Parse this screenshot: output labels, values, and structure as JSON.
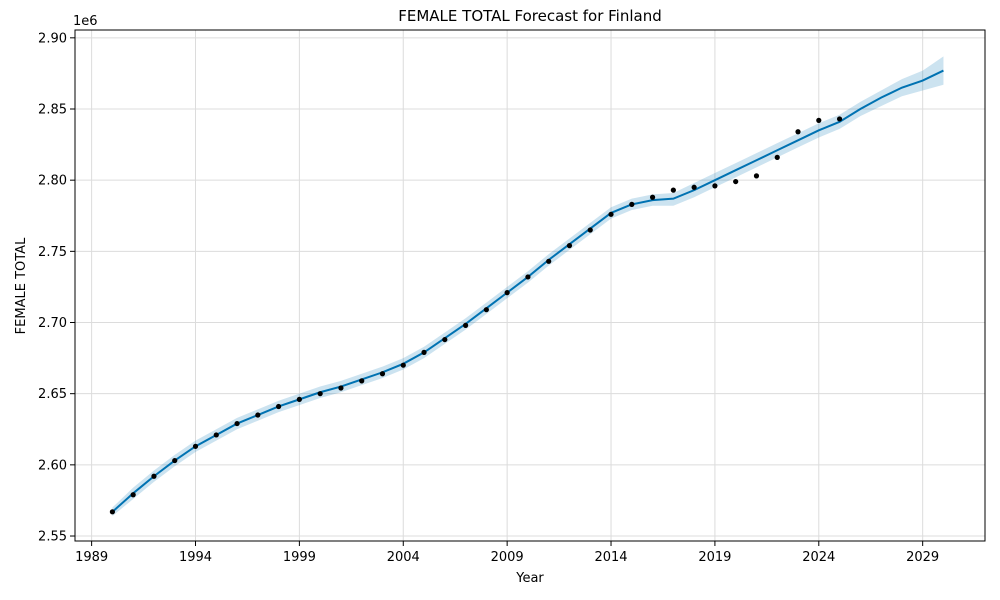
{
  "chart_data": {
    "type": "line",
    "title": "FEMALE TOTAL Forecast for Finland",
    "xlabel": "Year",
    "ylabel": "FEMALE TOTAL",
    "y_multiplier_label": "1e6",
    "xlim": [
      1988.2,
      2032.0
    ],
    "ylim": [
      2.5465,
      2.9055
    ],
    "x_ticks": [
      1989,
      1994,
      1999,
      2004,
      2009,
      2014,
      2019,
      2024,
      2029
    ],
    "y_ticks": [
      2.55,
      2.6,
      2.65,
      2.7,
      2.75,
      2.8,
      2.85,
      2.9
    ],
    "y_tick_labels": [
      "2.55",
      "2.60",
      "2.65",
      "2.70",
      "2.75",
      "2.80",
      "2.85",
      "2.90"
    ],
    "grid": true,
    "colors": {
      "forecast": "#0072B2",
      "band": "#0072B2",
      "observed": "#000000"
    },
    "observed": {
      "x": [
        1990,
        1991,
        1992,
        1993,
        1994,
        1995,
        1996,
        1997,
        1998,
        1999,
        2000,
        2001,
        2002,
        2003,
        2004,
        2005,
        2006,
        2007,
        2008,
        2009,
        2010,
        2011,
        2012,
        2013,
        2014,
        2015,
        2016,
        2017,
        2018,
        2019,
        2020,
        2021,
        2022,
        2023,
        2024,
        2025
      ],
      "y": [
        2.567,
        2.579,
        2.592,
        2.603,
        2.613,
        2.621,
        2.629,
        2.635,
        2.641,
        2.646,
        2.65,
        2.654,
        2.659,
        2.664,
        2.67,
        2.679,
        2.688,
        2.698,
        2.709,
        2.721,
        2.732,
        2.743,
        2.754,
        2.765,
        2.776,
        2.783,
        2.788,
        2.793,
        2.795,
        2.796,
        2.799,
        2.803,
        2.816,
        2.834,
        2.842,
        2.843
      ]
    },
    "forecast": {
      "x": [
        1990,
        1991,
        1992,
        1993,
        1994,
        1995,
        1996,
        1997,
        1998,
        1999,
        2000,
        2001,
        2002,
        2003,
        2004,
        2005,
        2006,
        2007,
        2008,
        2009,
        2010,
        2011,
        2012,
        2013,
        2014,
        2015,
        2016,
        2017,
        2018,
        2019,
        2020,
        2021,
        2022,
        2023,
        2024,
        2025,
        2026,
        2027,
        2028,
        2029,
        2030
      ],
      "yhat": [
        2.567,
        2.58,
        2.592,
        2.603,
        2.613,
        2.621,
        2.629,
        2.635,
        2.641,
        2.646,
        2.651,
        2.655,
        2.66,
        2.665,
        2.671,
        2.679,
        2.689,
        2.699,
        2.71,
        2.721,
        2.732,
        2.744,
        2.755,
        2.766,
        2.777,
        2.783,
        2.786,
        2.787,
        2.793,
        2.8,
        2.807,
        2.814,
        2.821,
        2.828,
        2.835,
        2.841,
        2.85,
        2.858,
        2.865,
        2.87,
        2.877
      ],
      "lower": [
        2.564,
        2.576,
        2.588,
        2.599,
        2.609,
        2.617,
        2.625,
        2.631,
        2.637,
        2.642,
        2.647,
        2.651,
        2.656,
        2.661,
        2.667,
        2.675,
        2.685,
        2.695,
        2.706,
        2.717,
        2.728,
        2.74,
        2.751,
        2.762,
        2.773,
        2.779,
        2.782,
        2.782,
        2.788,
        2.795,
        2.802,
        2.809,
        2.816,
        2.823,
        2.83,
        2.836,
        2.845,
        2.852,
        2.859,
        2.863,
        2.867
      ],
      "upper": [
        2.57,
        2.584,
        2.596,
        2.607,
        2.617,
        2.625,
        2.633,
        2.639,
        2.645,
        2.65,
        2.655,
        2.659,
        2.664,
        2.669,
        2.675,
        2.683,
        2.693,
        2.703,
        2.714,
        2.725,
        2.736,
        2.748,
        2.759,
        2.77,
        2.781,
        2.787,
        2.79,
        2.791,
        2.798,
        2.805,
        2.812,
        2.819,
        2.826,
        2.833,
        2.84,
        2.846,
        2.855,
        2.863,
        2.871,
        2.877,
        2.887
      ]
    }
  }
}
